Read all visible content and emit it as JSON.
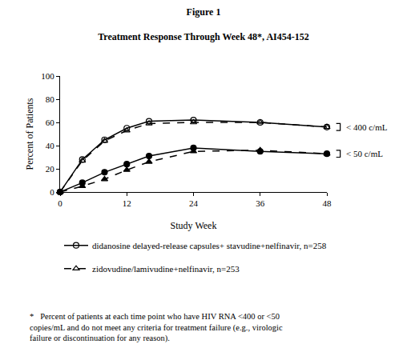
{
  "chart_data": {
    "type": "line",
    "title": [
      "Figure 1",
      "Treatment Response Through Week 48*, AI454-152"
    ],
    "x_label": "Study Week",
    "y_label": "Percent of Patients",
    "xlim": [
      0,
      48
    ],
    "xticks": [
      0,
      12,
      24,
      36,
      48
    ],
    "ylim": [
      0,
      100
    ],
    "yticks": [
      0,
      20,
      40,
      60,
      80,
      100
    ],
    "grid": false,
    "legend": "bottom",
    "x": [
      0,
      4,
      8,
      12,
      16,
      24,
      36,
      48
    ],
    "series": [
      {
        "name": "didanosine delayed-release capsules+ stavudine+nelfinavir, n=258",
        "color": "#000000",
        "marker": "circle-open",
        "line_style": "solid",
        "values": [
          0,
          28,
          45,
          55,
          61,
          62,
          60,
          56
        ]
      },
      {
        "name": "didanosine delayed-release capsules+ stavudine+nelfinavir, n=258",
        "color": "#000000",
        "marker": "circle",
        "line_style": "solid",
        "values": [
          0,
          8,
          17,
          24,
          31,
          38,
          35,
          33
        ]
      },
      {
        "name": "zidovudine/lamivudine+nelfinavir, n=253",
        "color": "#000000",
        "marker": "triangle-up-open",
        "line_style": "dash",
        "values": [
          0,
          27,
          44,
          53,
          59,
          60,
          60,
          56
        ]
      },
      {
        "name": "zidovudine/lamivudine+nelfinavir, n=253",
        "color": "#000000",
        "marker": "triangle-up",
        "line_style": "dash",
        "values": [
          0,
          5,
          11,
          19,
          26,
          35,
          36,
          33
        ]
      }
    ],
    "annotations": [
      {
        "text": "< 400 c/mL",
        "x": 48,
        "y": 56
      },
      {
        "text": "< 50 c/mL",
        "x": 48,
        "y": 33
      }
    ],
    "footnote": [
      "*   Percent of patients at each time point who have HIV RNA <400 or <50",
      "copies/mL and do not meet any criteria for treatment failure (e.g., virologic",
      "failure or discontinuation for any reason)."
    ]
  }
}
